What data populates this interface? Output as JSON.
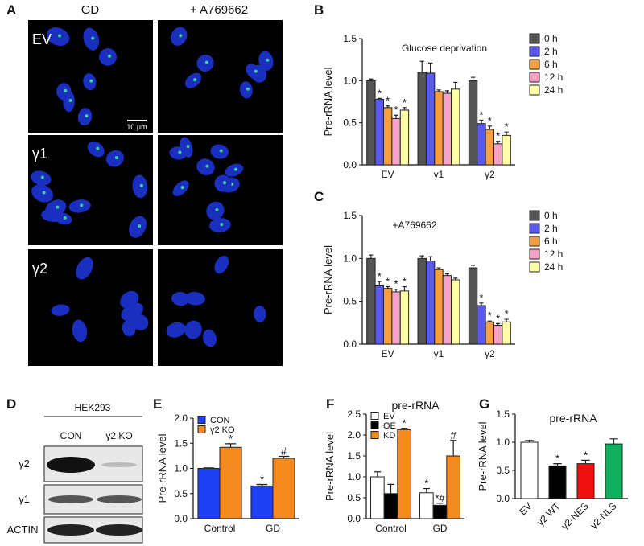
{
  "panel_labels": [
    "A",
    "B",
    "C",
    "D",
    "E",
    "F",
    "G"
  ],
  "panel_a": {
    "columns": [
      "GD",
      "+ A769662"
    ],
    "rows": [
      "EV",
      "γ1",
      "γ2"
    ],
    "scale_bar": "10 μm"
  },
  "panel_d": {
    "cell_line": "HEK293",
    "lanes": [
      "CON",
      "γ2 KO"
    ],
    "bands": [
      "γ2",
      "γ1",
      "ACTIN"
    ]
  },
  "chart_data": [
    {
      "type": "bar",
      "title": "Glucose deprivation",
      "y_label": "Pre-rRNA level",
      "legend": "right",
      "categories": [
        "EV",
        "γ1",
        "γ2"
      ],
      "ylim": [
        0,
        1.5
      ],
      "yticks": [
        {
          "value": 0,
          "label": "0.0"
        },
        {
          "value": 0.5,
          "label": "0.5"
        },
        {
          "value": 1,
          "label": "1.0"
        },
        {
          "value": 1.5,
          "label": "1.5"
        }
      ],
      "series": [
        {
          "name": "0 h",
          "color": "#555555",
          "values": [
            1.0,
            1.1,
            1.0
          ],
          "errors": [
            0.02,
            0.13,
            0.04
          ],
          "annotations": [
            null,
            null,
            null
          ]
        },
        {
          "name": "2 h",
          "color": "#5a5af0",
          "values": [
            0.78,
            1.09,
            0.49
          ],
          "errors": [
            0.01,
            0.12,
            0.04
          ],
          "annotations": [
            "*",
            null,
            "*"
          ]
        },
        {
          "name": "6 h",
          "color": "#f5a040",
          "values": [
            0.68,
            0.87,
            0.42
          ],
          "errors": [
            0.02,
            0.02,
            0.04
          ],
          "annotations": [
            "*",
            null,
            "*"
          ]
        },
        {
          "name": "12 h",
          "color": "#f4a3c4",
          "values": [
            0.55,
            0.85,
            0.25
          ],
          "errors": [
            0.04,
            0.03,
            0.03
          ],
          "annotations": [
            "*",
            null,
            "*"
          ]
        },
        {
          "name": "24 h",
          "color": "#ffffa6",
          "values": [
            0.65,
            0.9,
            0.35
          ],
          "errors": [
            0.03,
            0.08,
            0.04
          ],
          "annotations": [
            "*",
            null,
            "*"
          ]
        }
      ]
    },
    {
      "type": "bar",
      "title": "+A769662",
      "y_label": "Pre-rRNA level",
      "legend": "right",
      "categories": [
        "EV",
        "γ1",
        "γ2"
      ],
      "ylim": [
        0,
        1.5
      ],
      "yticks": [
        {
          "value": 0,
          "label": "0.0"
        },
        {
          "value": 0.5,
          "label": "0.5"
        },
        {
          "value": 1,
          "label": "1.0"
        },
        {
          "value": 1.5,
          "label": "1.5"
        }
      ],
      "series": [
        {
          "name": "0 h",
          "color": "#555555",
          "values": [
            1.0,
            1.0,
            0.89
          ],
          "errors": [
            0.04,
            0.03,
            0.03
          ],
          "annotations": [
            null,
            null,
            null
          ]
        },
        {
          "name": "2 h",
          "color": "#5a5af0",
          "values": [
            0.68,
            0.97,
            0.45
          ],
          "errors": [
            0.05,
            0.05,
            0.03
          ],
          "annotations": [
            "*",
            null,
            "*"
          ]
        },
        {
          "name": "6 h",
          "color": "#f5a040",
          "values": [
            0.65,
            0.87,
            0.26
          ],
          "errors": [
            0.02,
            0.02,
            0.01
          ],
          "annotations": [
            "*",
            null,
            "*"
          ]
        },
        {
          "name": "12 h",
          "color": "#f4a3c4",
          "values": [
            0.61,
            0.8,
            0.22
          ],
          "errors": [
            0.03,
            0.02,
            0.02
          ],
          "annotations": [
            "*",
            null,
            "*"
          ]
        },
        {
          "name": "24 h",
          "color": "#ffffa6",
          "values": [
            0.62,
            0.75,
            0.26
          ],
          "errors": [
            0.05,
            0.02,
            0.03
          ],
          "annotations": [
            "*",
            null,
            "*"
          ]
        }
      ]
    },
    {
      "type": "bar",
      "y_label": "Pre-rRNA level",
      "legend": "upper left",
      "categories": [
        "Control",
        "GD"
      ],
      "ylim": [
        0,
        2.0
      ],
      "yticks": [
        {
          "value": 0,
          "label": "0.0"
        },
        {
          "value": 0.5,
          "label": "0.5"
        },
        {
          "value": 1,
          "label": "1.0"
        },
        {
          "value": 1.5,
          "label": "1.5"
        },
        {
          "value": 2,
          "label": "2.0"
        }
      ],
      "series": [
        {
          "name": "CON",
          "color": "#1f3ff5",
          "values": [
            1.0,
            0.65
          ],
          "errors": [
            0.01,
            0.03
          ],
          "annotations": [
            null,
            "*"
          ]
        },
        {
          "name": "γ2 KO",
          "color": "#f58a1f",
          "values": [
            1.42,
            1.2
          ],
          "errors": [
            0.07,
            0.04
          ],
          "annotations": [
            "*",
            "#"
          ]
        }
      ]
    },
    {
      "type": "bar",
      "title": "pre-rRNA",
      "y_label": "Pre-rRNA level",
      "legend": "upper left",
      "categories": [
        "Control",
        "GD"
      ],
      "ylim": [
        0,
        2.5
      ],
      "yticks": [
        {
          "value": 0,
          "label": "0.0"
        },
        {
          "value": 0.5,
          "label": "0.5"
        },
        {
          "value": 1,
          "label": "1.0"
        },
        {
          "value": 1.5,
          "label": "1.5"
        },
        {
          "value": 2,
          "label": "2.0"
        },
        {
          "value": 2.5,
          "label": "2.5"
        }
      ],
      "series": [
        {
          "name": "EV",
          "color": "#ffffff",
          "values": [
            1.0,
            0.62
          ],
          "errors": [
            0.12,
            0.1
          ],
          "annotations": [
            null,
            "*"
          ]
        },
        {
          "name": "OE",
          "color": "#000000",
          "values": [
            0.6,
            0.32
          ],
          "errors": [
            0.22,
            0.05
          ],
          "annotations": [
            null,
            "*#"
          ]
        },
        {
          "name": "KD",
          "color": "#f58a1f",
          "values": [
            2.13,
            1.5
          ],
          "errors": [
            0.03,
            0.37
          ],
          "annotations": [
            "*",
            "#"
          ]
        }
      ]
    },
    {
      "type": "bar",
      "title": "pre-rRNA",
      "y_label": "Pre-rRNA level",
      "x_label_rotation": -45,
      "categories": [
        "EV",
        "γ2 WT",
        "γ2-NES",
        "γ2-NLS"
      ],
      "values": [
        1.0,
        0.58,
        0.62,
        0.97
      ],
      "colors": [
        "#ffffff",
        "#000000",
        "#f01010",
        "#10b060"
      ],
      "errors": [
        0.03,
        0.04,
        0.06,
        0.09
      ],
      "annotations": [
        null,
        "*",
        "*",
        null
      ],
      "ylim": [
        0,
        1.5
      ],
      "yticks": [
        {
          "value": 0,
          "label": "0.0"
        },
        {
          "value": 0.5,
          "label": "0.5"
        },
        {
          "value": 1,
          "label": "1.0"
        },
        {
          "value": 1.5,
          "label": "1.5"
        }
      ]
    }
  ]
}
